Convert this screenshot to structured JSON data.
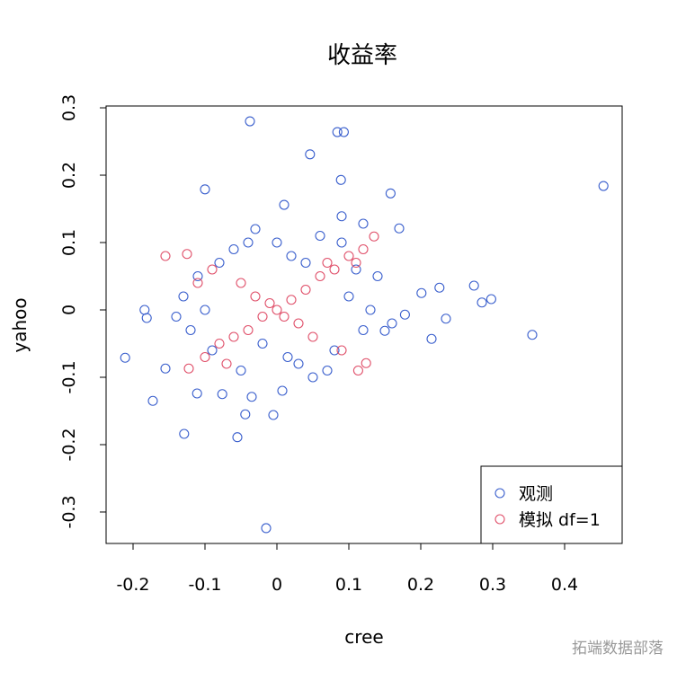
{
  "chart_data": {
    "type": "scatter",
    "title": "收益率",
    "x_label": "cree",
    "y_label": "yahoo",
    "xlim": [
      -0.2375,
      0.48
    ],
    "ylim": [
      -0.3467,
      0.3027
    ],
    "xticks": [
      -0.2,
      -0.1,
      0.0,
      0.1,
      0.2,
      0.3,
      0.4
    ],
    "yticks": [
      -0.3,
      -0.2,
      -0.1,
      0.0,
      0.1,
      0.2,
      0.3
    ],
    "legend_position": "bottomright",
    "series": [
      {
        "name": "观测",
        "color": "#3a5fcd",
        "x": [
          -0.0375,
          0.084,
          0.093,
          0.046,
          0.454,
          -0.1,
          0.089,
          0.158,
          -0.015,
          -0.055,
          -0.129,
          0.355,
          0.298,
          0.274,
          0.285,
          0.226,
          0.235,
          0.215,
          0.201,
          -0.211,
          -0.184,
          -0.181,
          -0.1725,
          -0.155,
          -0.044,
          -0.005,
          0.17,
          0.178,
          0.15,
          0.01,
          0.09,
          0.12,
          -0.035,
          0.0075,
          -0.111,
          -0.076,
          -0.13,
          -0.12,
          -0.11,
          -0.09,
          -0.06,
          -0.03,
          0.0,
          0.03,
          0.06,
          0.08,
          0.1,
          0.12,
          0.14,
          0.16,
          -0.14,
          -0.1,
          -0.05,
          0.02,
          0.05,
          0.11,
          0.13,
          -0.02,
          0.04,
          -0.08,
          0.07,
          0.015,
          -0.04,
          0.09
        ],
        "y": [
          0.28,
          0.264,
          0.264,
          0.231,
          0.184,
          0.179,
          0.193,
          0.173,
          -0.324,
          -0.189,
          -0.184,
          -0.037,
          0.016,
          0.036,
          0.011,
          0.033,
          -0.013,
          -0.043,
          0.025,
          -0.071,
          0.0,
          -0.012,
          -0.135,
          -0.087,
          -0.155,
          -0.156,
          0.121,
          -0.007,
          -0.031,
          0.156,
          0.139,
          0.128,
          -0.129,
          -0.12,
          -0.124,
          -0.125,
          0.02,
          -0.03,
          0.05,
          -0.06,
          0.09,
          0.12,
          0.1,
          -0.08,
          0.11,
          -0.06,
          0.02,
          -0.03,
          0.05,
          -0.02,
          -0.01,
          0.0,
          -0.09,
          0.08,
          -0.1,
          0.06,
          0.0,
          -0.05,
          0.07,
          0.07,
          -0.09,
          -0.07,
          0.1,
          0.1
        ]
      },
      {
        "name": "模拟 df=1",
        "color": "#e0506a",
        "x": [
          -0.155,
          -0.125,
          0.135,
          0.124,
          -0.1225,
          0.113,
          -0.1,
          -0.08,
          -0.06,
          -0.04,
          -0.02,
          0.0,
          0.02,
          0.04,
          0.06,
          0.08,
          0.1,
          0.12,
          -0.09,
          -0.05,
          0.05,
          0.09,
          -0.07,
          -0.03,
          0.03,
          0.07,
          -0.01,
          0.01,
          0.11,
          -0.11
        ],
        "y": [
          0.08,
          0.083,
          0.109,
          -0.079,
          -0.087,
          -0.09,
          -0.07,
          -0.05,
          -0.04,
          -0.03,
          -0.01,
          0.0,
          0.015,
          0.03,
          0.05,
          0.06,
          0.08,
          0.09,
          0.06,
          0.04,
          -0.04,
          -0.06,
          -0.08,
          0.02,
          -0.02,
          0.07,
          0.01,
          -0.01,
          0.07,
          0.04
        ]
      }
    ]
  },
  "watermark": "拓端数据部落"
}
